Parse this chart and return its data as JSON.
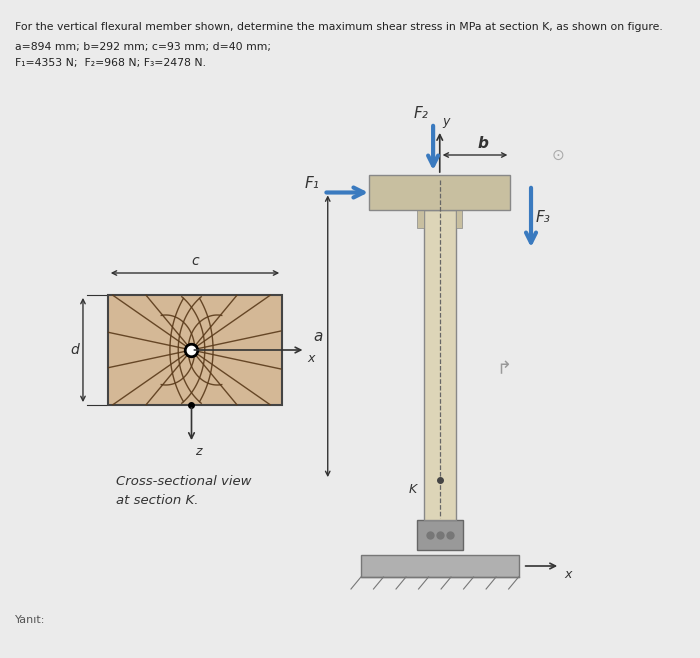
{
  "title_line1": "For the vertical flexural member shown, determine the maximum shear stress in MPa at section K, as shown on figure.",
  "title_line2": "a=894 mm; b=292 mm; c=93 mm; d=40 mm;",
  "title_line3": "F₁=4353 N;  F₂=968 N; F₃=2478 N.",
  "yanit_label": "Yanıt:",
  "cross_section_label": "Cross-sectional view\nat section K.",
  "bg_color": "#ebebeb",
  "rect_fill": "#d4b896",
  "rect_edge": "#444444",
  "beam_fill": "#ddd5b8",
  "beam_edge": "#888888",
  "flange_fill": "#c8bfa0",
  "base_fill": "#aaaaaa",
  "arrow_blue": "#3a7abf",
  "arrow_dark": "#333333",
  "line_color": "#5a3a1a",
  "F1_label": "F₁",
  "F2_label": "F₂",
  "F3_label": "F₃",
  "K_label": "K",
  "a_label": "a",
  "b_label": "b",
  "c_label": "c",
  "d_label": "d",
  "x_label": "x",
  "y_label": "y",
  "z_label": "z"
}
